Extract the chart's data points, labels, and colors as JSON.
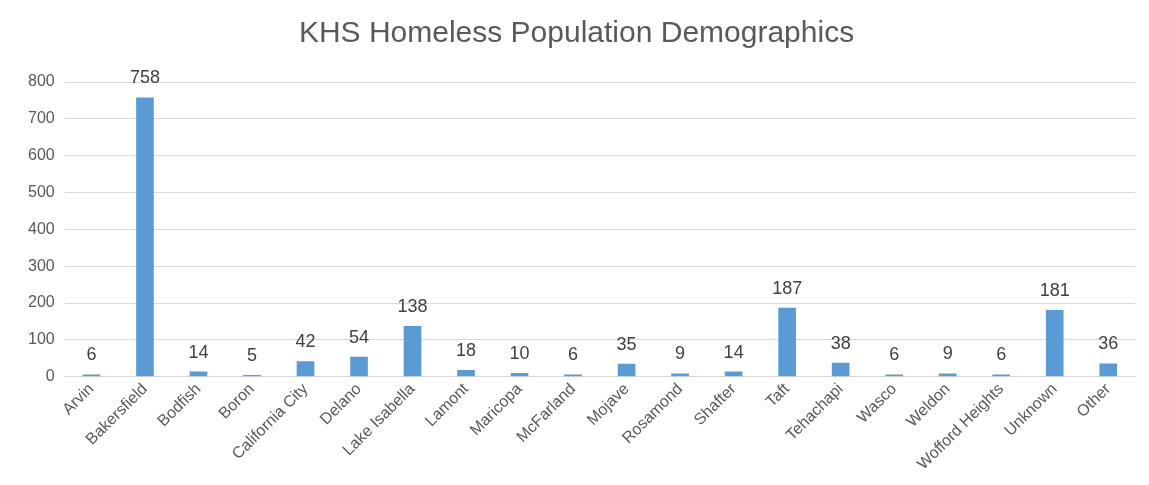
{
  "chart_data": {
    "type": "bar",
    "title": "KHS Homeless Population Demographics",
    "categories": [
      "Arvin",
      "Bakersfield",
      "Bodfish",
      "Boron",
      "California City",
      "Delano",
      "Lake Isabella",
      "Lamont",
      "Maricopa",
      "McFarland",
      "Mojave",
      "Rosamond",
      "Shafter",
      "Taft",
      "Tehachapi",
      "Wasco",
      "Weldon",
      "Wofford Heights",
      "Unknown",
      "Other"
    ],
    "values": [
      6,
      758,
      14,
      5,
      42,
      54,
      138,
      18,
      10,
      6,
      35,
      9,
      14,
      187,
      38,
      6,
      9,
      6,
      181,
      36
    ],
    "color": "#5b9bd5",
    "ylim": [
      0,
      800
    ],
    "yticks": [
      0,
      100,
      200,
      300,
      400,
      500,
      600,
      700,
      800
    ],
    "grid": "y",
    "legend": false,
    "data_labels": true
  }
}
